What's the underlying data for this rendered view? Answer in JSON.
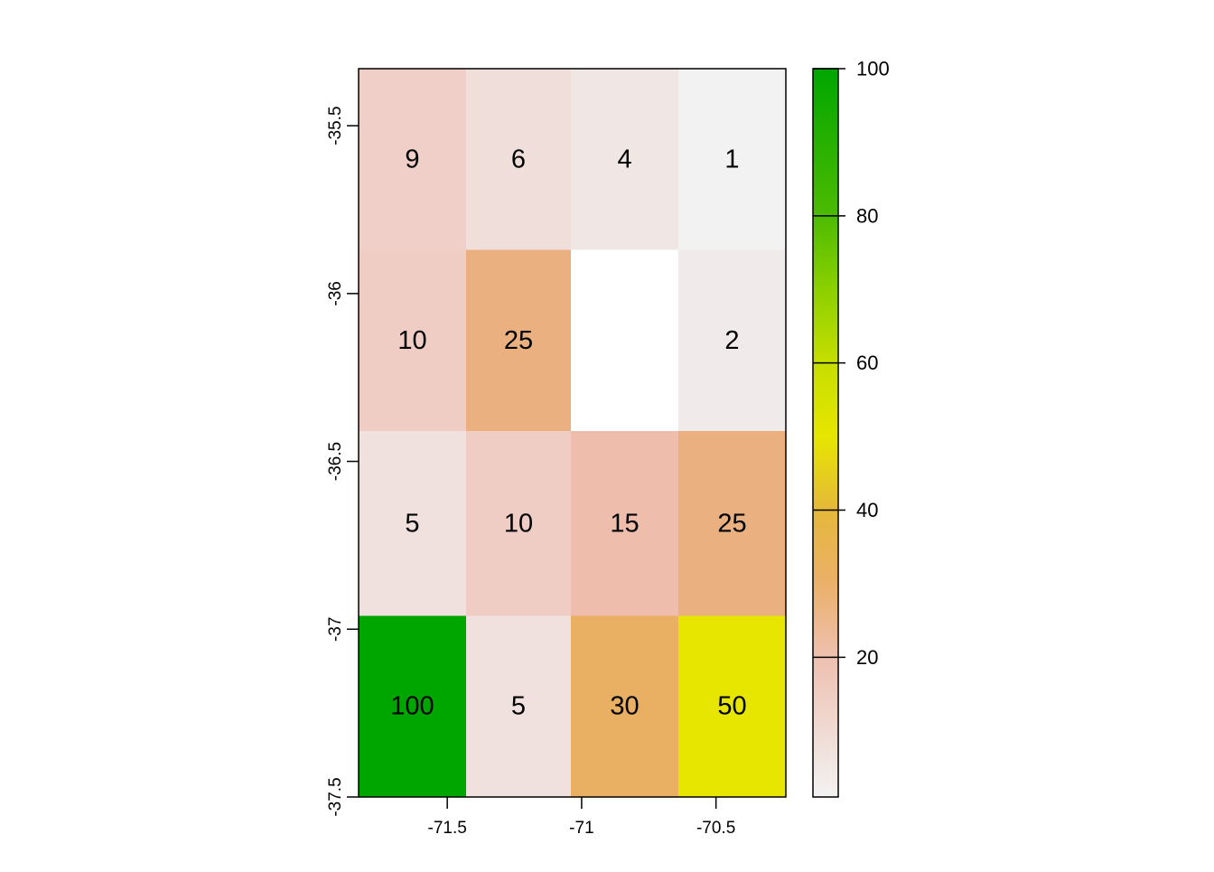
{
  "chart_data": {
    "type": "heatmap",
    "title": "",
    "xlabel": "",
    "ylabel": "",
    "x_ticks": [
      -71.5,
      -71,
      -70.5
    ],
    "x_tick_labels": [
      "-71.5",
      "-71",
      "-70.5"
    ],
    "y_ticks": [
      -37.5,
      -37,
      -36.5,
      -36,
      -35.5
    ],
    "y_tick_labels": [
      "-37.5",
      "-37",
      "-36.5",
      "-36",
      "-35.5"
    ],
    "xlim": [
      -71.83,
      -70.24
    ],
    "ylim": [
      -37.5,
      -35.33
    ],
    "grid": false,
    "cell_x_edges": [
      -71.83,
      -71.43,
      -71.04,
      -70.64,
      -70.24
    ],
    "cell_y_edges": [
      -35.33,
      -35.87,
      -36.41,
      -36.96,
      -37.5
    ],
    "values": [
      [
        9,
        6,
        4,
        1
      ],
      [
        10,
        25,
        null,
        2
      ],
      [
        5,
        10,
        15,
        25
      ],
      [
        100,
        5,
        30,
        50
      ]
    ],
    "cell_labels": [
      [
        "9",
        "6",
        "4",
        "1"
      ],
      [
        "10",
        "25",
        "",
        "2"
      ],
      [
        "5",
        "10",
        "15",
        "25"
      ],
      [
        "100",
        "5",
        "30",
        "50"
      ]
    ],
    "cell_colors": [
      [
        "#EFCFC7",
        "#F0DEDB",
        "#F0E6E4",
        "#F2F2F2"
      ],
      [
        "#EFCCC4",
        "#EBB07F",
        "#FFFFFF",
        "#F0EBEA"
      ],
      [
        "#F0E1DE",
        "#EFCCC4",
        "#EEBDAB",
        "#EBB07F"
      ],
      [
        "#00A600",
        "#F0E1DE",
        "#E9B064",
        "#E6E600"
      ]
    ],
    "legend": {
      "position": "right",
      "min": 1,
      "max": 100,
      "ticks": [
        20,
        40,
        60,
        80,
        100
      ],
      "tick_labels": [
        "20",
        "40",
        "60",
        "80",
        "100"
      ],
      "color_stops": [
        {
          "value": 1,
          "color": "#F2F2F2"
        },
        {
          "value": 20,
          "color": "#EEC0B0"
        },
        {
          "value": 30,
          "color": "#EBB06A"
        },
        {
          "value": 40,
          "color": "#E5B83A"
        },
        {
          "value": 50,
          "color": "#E6E600"
        },
        {
          "value": 60,
          "color": "#C6DE00"
        },
        {
          "value": 70,
          "color": "#8CD000"
        },
        {
          "value": 80,
          "color": "#4DBB00"
        },
        {
          "value": 100,
          "color": "#00A600"
        }
      ]
    }
  }
}
